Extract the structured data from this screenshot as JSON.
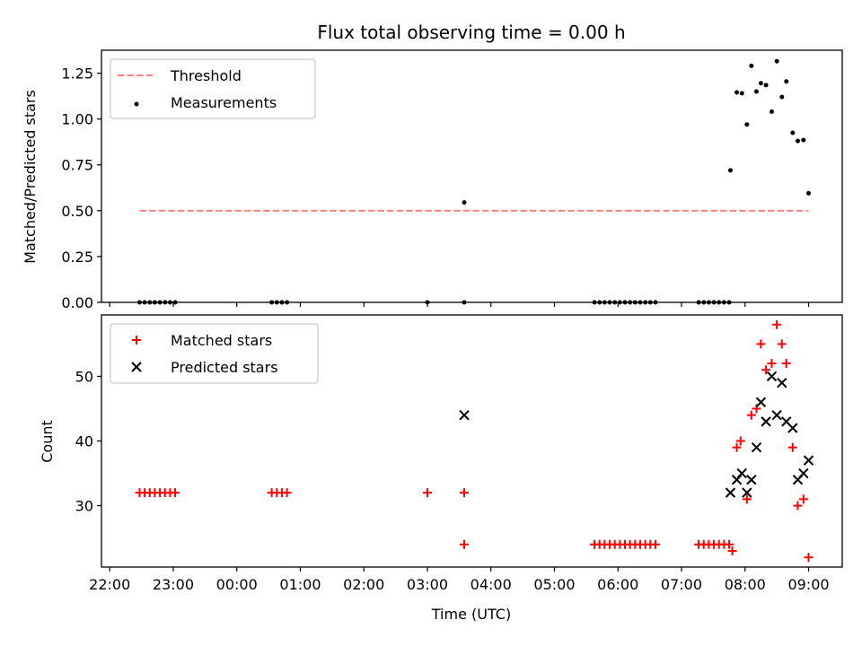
{
  "title": "Flux total observing time = 0.00 h",
  "chart_data": [
    {
      "type": "line+scatter",
      "ylabel": "Matched/Predicted stars",
      "xlabel": "",
      "ylim": [
        0,
        1.375
      ],
      "yticks": [
        0.0,
        0.25,
        0.5,
        0.75,
        1.0,
        1.25
      ],
      "ytick_labels": [
        "0.00",
        "0.25",
        "0.50",
        "0.75",
        "1.00",
        "1.25"
      ],
      "legend": {
        "position": "top-left",
        "entries": [
          "Threshold",
          "Measurements"
        ]
      },
      "threshold": {
        "name": "Threshold",
        "value": 0.5,
        "x_start": 22.47,
        "x_end": 33.0,
        "color": "#ff8080"
      },
      "measurements": {
        "name": "Measurements",
        "color": "#000000",
        "x": [
          22.47,
          22.55,
          22.63,
          22.71,
          22.79,
          22.87,
          22.95,
          23.03,
          24.55,
          24.63,
          24.71,
          24.79,
          27.0,
          27.58,
          27.58,
          29.63,
          29.71,
          29.79,
          29.87,
          29.95,
          30.03,
          30.11,
          30.19,
          30.27,
          30.35,
          30.43,
          30.51,
          30.59,
          31.27,
          31.35,
          31.43,
          31.51,
          31.59,
          31.67,
          31.75,
          31.77,
          31.87,
          31.95,
          32.03,
          32.1,
          32.18,
          32.25,
          32.33,
          32.42,
          32.5,
          32.58,
          32.65,
          32.75,
          32.83,
          32.92,
          33.0
        ],
        "y": [
          0,
          0,
          0,
          0,
          0,
          0,
          0,
          0,
          0,
          0,
          0,
          0,
          0,
          0,
          0.545,
          0,
          0,
          0,
          0,
          0,
          0,
          0,
          0,
          0,
          0,
          0,
          0,
          0,
          0,
          0,
          0,
          0,
          0,
          0,
          0,
          0.72,
          1.145,
          1.14,
          0.97,
          1.29,
          1.15,
          1.195,
          1.185,
          1.04,
          1.315,
          1.12,
          1.205,
          0.925,
          0.88,
          0.885,
          0.595
        ]
      }
    },
    {
      "type": "scatter",
      "ylabel": "Count",
      "xlabel": "Time (UTC)",
      "ylim": [
        20.5,
        59.5
      ],
      "yticks": [
        30,
        40,
        50
      ],
      "ytick_labels": [
        "30",
        "40",
        "50"
      ],
      "xlim": [
        21.87,
        33.53
      ],
      "xticks": [
        22,
        23,
        24,
        25,
        26,
        27,
        28,
        29,
        30,
        31,
        32,
        33
      ],
      "xtick_labels": [
        "22:00",
        "23:00",
        "00:00",
        "01:00",
        "02:00",
        "03:00",
        "04:00",
        "05:00",
        "06:00",
        "07:00",
        "08:00",
        "09:00"
      ],
      "legend": {
        "position": "top-left",
        "entries": [
          "Matched stars",
          "Predicted stars"
        ]
      },
      "matched": {
        "name": "Matched stars",
        "color": "#ff0000",
        "x": [
          22.47,
          22.55,
          22.63,
          22.71,
          22.79,
          22.87,
          22.95,
          23.03,
          24.55,
          24.63,
          24.71,
          24.79,
          27.0,
          27.58,
          27.58,
          29.63,
          29.71,
          29.79,
          29.87,
          29.95,
          30.03,
          30.11,
          30.19,
          30.27,
          30.35,
          30.43,
          30.51,
          30.59,
          31.27,
          31.35,
          31.43,
          31.51,
          31.59,
          31.67,
          31.75,
          31.8,
          31.87,
          31.93,
          32.03,
          32.1,
          32.18,
          32.25,
          32.33,
          32.42,
          32.5,
          32.58,
          32.65,
          32.75,
          32.83,
          32.92,
          33.0
        ],
        "y": [
          32,
          32,
          32,
          32,
          32,
          32,
          32,
          32,
          32,
          32,
          32,
          32,
          32,
          32,
          24,
          24,
          24,
          24,
          24,
          24,
          24,
          24,
          24,
          24,
          24,
          24,
          24,
          24,
          24,
          24,
          24,
          24,
          24,
          24,
          24,
          23,
          39,
          40,
          31,
          44,
          45,
          55,
          51,
          52,
          58,
          55,
          52,
          39,
          30,
          31,
          22
        ]
      },
      "predicted": {
        "name": "Predicted stars",
        "color": "#000000",
        "x": [
          27.58,
          31.77,
          31.87,
          31.95,
          32.03,
          32.1,
          32.18,
          32.25,
          32.33,
          32.42,
          32.5,
          32.58,
          32.65,
          32.75,
          32.83,
          32.92,
          33.0
        ],
        "y": [
          44,
          32,
          34,
          35,
          32,
          34,
          39,
          46,
          43,
          50,
          44,
          49,
          43,
          42,
          34,
          35,
          37
        ]
      }
    }
  ]
}
